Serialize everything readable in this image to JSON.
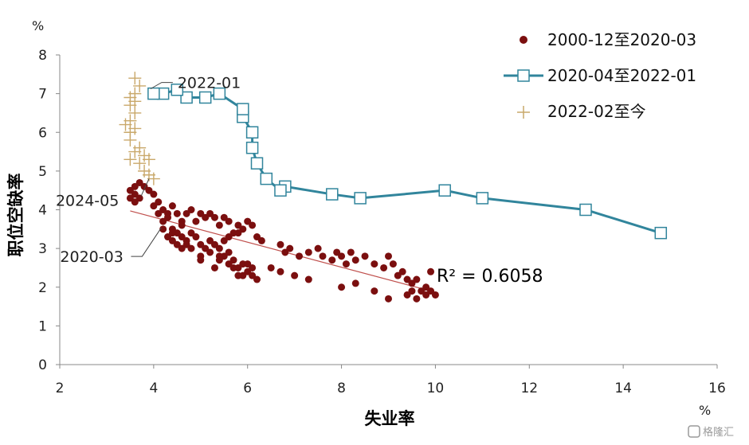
{
  "chart_data": {
    "type": "scatter",
    "title": "",
    "xlabel": "失业率",
    "ylabel": "职位空缺率",
    "x_unit": "%",
    "y_unit": "%",
    "xlim": [
      2,
      16
    ],
    "ylim": [
      0,
      8
    ],
    "x_ticks": [
      "2",
      "4",
      "6",
      "8",
      "10",
      "12",
      "14",
      "16"
    ],
    "y_ticks": [
      "0",
      "1",
      "2",
      "3",
      "4",
      "5",
      "6",
      "7",
      "8"
    ],
    "grid": false,
    "legend_position": "top-right",
    "series": [
      {
        "name": "2000-12至2020-03",
        "style": "markers",
        "color": "#7b0f0f",
        "points": [
          [
            3.5,
            4.5
          ],
          [
            3.6,
            4.6
          ],
          [
            3.7,
            4.7
          ],
          [
            3.6,
            4.4
          ],
          [
            3.5,
            4.3
          ],
          [
            3.8,
            4.6
          ],
          [
            3.9,
            4.5
          ],
          [
            3.7,
            4.3
          ],
          [
            3.6,
            4.2
          ],
          [
            4.0,
            4.4
          ],
          [
            4.0,
            4.1
          ],
          [
            4.1,
            4.2
          ],
          [
            4.2,
            4.0
          ],
          [
            4.3,
            3.9
          ],
          [
            4.2,
            3.7
          ],
          [
            4.3,
            3.8
          ],
          [
            4.1,
            3.9
          ],
          [
            4.4,
            4.1
          ],
          [
            4.5,
            3.9
          ],
          [
            4.6,
            3.7
          ],
          [
            4.4,
            3.5
          ],
          [
            4.5,
            3.4
          ],
          [
            4.6,
            3.6
          ],
          [
            4.3,
            3.3
          ],
          [
            4.4,
            3.2
          ],
          [
            4.6,
            3.3
          ],
          [
            4.7,
            3.2
          ],
          [
            4.8,
            3.4
          ],
          [
            4.9,
            3.3
          ],
          [
            4.7,
            3.1
          ],
          [
            4.8,
            3.0
          ],
          [
            5.0,
            3.1
          ],
          [
            5.1,
            3.0
          ],
          [
            5.2,
            2.9
          ],
          [
            5.0,
            2.8
          ],
          [
            5.3,
            3.1
          ],
          [
            5.2,
            3.2
          ],
          [
            5.4,
            3.0
          ],
          [
            5.5,
            2.8
          ],
          [
            5.4,
            2.7
          ],
          [
            5.6,
            2.9
          ],
          [
            5.6,
            2.6
          ],
          [
            5.7,
            2.7
          ],
          [
            5.8,
            2.5
          ],
          [
            5.9,
            2.6
          ],
          [
            6.0,
            2.4
          ],
          [
            6.1,
            2.5
          ],
          [
            5.9,
            2.3
          ],
          [
            6.1,
            2.3
          ],
          [
            6.2,
            2.2
          ],
          [
            5.5,
            3.2
          ],
          [
            5.6,
            3.3
          ],
          [
            4.7,
            3.9
          ],
          [
            4.8,
            4.0
          ],
          [
            5.0,
            3.9
          ],
          [
            5.1,
            3.8
          ],
          [
            5.3,
            3.8
          ],
          [
            5.5,
            3.8
          ],
          [
            5.6,
            3.7
          ],
          [
            5.8,
            3.6
          ],
          [
            5.8,
            3.4
          ],
          [
            5.9,
            3.5
          ],
          [
            6.1,
            3.6
          ],
          [
            6.2,
            3.3
          ],
          [
            6.3,
            3.2
          ],
          [
            4.9,
            3.7
          ],
          [
            5.2,
            3.9
          ],
          [
            5.4,
            3.6
          ],
          [
            5.7,
            3.4
          ],
          [
            6.0,
            3.7
          ],
          [
            6.7,
            3.1
          ],
          [
            6.8,
            2.9
          ],
          [
            6.9,
            3.0
          ],
          [
            7.1,
            2.8
          ],
          [
            7.3,
            2.9
          ],
          [
            7.5,
            3.0
          ],
          [
            7.6,
            2.8
          ],
          [
            7.8,
            2.7
          ],
          [
            7.9,
            2.9
          ],
          [
            8.0,
            2.8
          ],
          [
            8.1,
            2.6
          ],
          [
            8.2,
            2.9
          ],
          [
            8.3,
            2.7
          ],
          [
            8.5,
            2.8
          ],
          [
            8.7,
            2.6
          ],
          [
            8.9,
            2.5
          ],
          [
            9.0,
            2.8
          ],
          [
            9.1,
            2.6
          ],
          [
            9.3,
            2.4
          ],
          [
            9.4,
            2.2
          ],
          [
            9.5,
            2.1
          ],
          [
            9.6,
            2.2
          ],
          [
            9.7,
            1.9
          ],
          [
            9.8,
            2.0
          ],
          [
            9.9,
            2.4
          ],
          [
            9.8,
            1.8
          ],
          [
            9.9,
            1.9
          ],
          [
            10.0,
            1.8
          ],
          [
            9.5,
            1.9
          ],
          [
            9.6,
            1.7
          ],
          [
            6.7,
            2.4
          ],
          [
            7.0,
            2.3
          ],
          [
            7.3,
            2.2
          ],
          [
            8.0,
            2.0
          ],
          [
            8.3,
            2.1
          ],
          [
            8.7,
            1.9
          ],
          [
            9.0,
            1.7
          ],
          [
            5.3,
            2.5
          ],
          [
            5.8,
            2.3
          ],
          [
            6.5,
            2.5
          ],
          [
            4.5,
            3.1
          ],
          [
            4.6,
            3.0
          ],
          [
            5.0,
            2.7
          ],
          [
            5.4,
            2.8
          ],
          [
            5.7,
            2.5
          ],
          [
            6.0,
            2.6
          ],
          [
            4.2,
            3.5
          ],
          [
            4.4,
            3.4
          ],
          [
            9.2,
            2.3
          ],
          [
            9.4,
            1.8
          ]
        ]
      },
      {
        "name": "2020-04至2022-01",
        "style": "line-square",
        "color": "#31859c",
        "points": [
          [
            14.8,
            3.4
          ],
          [
            13.2,
            4.0
          ],
          [
            11.0,
            4.3
          ],
          [
            10.2,
            4.5
          ],
          [
            8.4,
            4.3
          ],
          [
            7.8,
            4.4
          ],
          [
            6.8,
            4.6
          ],
          [
            6.7,
            4.5
          ],
          [
            6.4,
            4.8
          ],
          [
            6.2,
            5.2
          ],
          [
            6.1,
            5.6
          ],
          [
            6.1,
            6.0
          ],
          [
            5.9,
            6.4
          ],
          [
            5.9,
            6.6
          ],
          [
            5.4,
            7.0
          ],
          [
            5.1,
            6.9
          ],
          [
            4.7,
            6.9
          ],
          [
            4.5,
            7.1
          ],
          [
            4.2,
            7.0
          ],
          [
            4.0,
            7.0
          ]
        ]
      },
      {
        "name": "2022-02至今",
        "style": "plus",
        "color": "#c9a86a",
        "points": [
          [
            3.6,
            7.4
          ],
          [
            3.7,
            7.2
          ],
          [
            3.6,
            7.0
          ],
          [
            3.5,
            6.9
          ],
          [
            3.6,
            6.8
          ],
          [
            3.5,
            6.7
          ],
          [
            3.6,
            6.5
          ],
          [
            3.5,
            6.3
          ],
          [
            3.4,
            6.2
          ],
          [
            3.6,
            6.1
          ],
          [
            3.5,
            6.0
          ],
          [
            3.5,
            5.8
          ],
          [
            3.7,
            5.6
          ],
          [
            3.6,
            5.5
          ],
          [
            3.8,
            5.4
          ],
          [
            3.5,
            5.3
          ],
          [
            3.7,
            5.2
          ],
          [
            3.9,
            5.3
          ],
          [
            3.8,
            5.0
          ],
          [
            3.9,
            4.9
          ],
          [
            4.0,
            4.8
          ]
        ]
      }
    ],
    "trendline": {
      "series": "2000-12至2020-03",
      "x_range": [
        3.5,
        10.0
      ],
      "y_range": [
        3.97,
        1.87
      ],
      "color": "#c0504d",
      "label": "R² = 0.6058"
    },
    "annotations": [
      {
        "text": "2022-01",
        "x": 4.0,
        "y": 7.0
      },
      {
        "text": "2024-05",
        "x": 3.9,
        "y": 4.8
      },
      {
        "text": "2020-03",
        "x": 4.4,
        "y": 3.7
      }
    ]
  },
  "watermark": "格隆汇"
}
